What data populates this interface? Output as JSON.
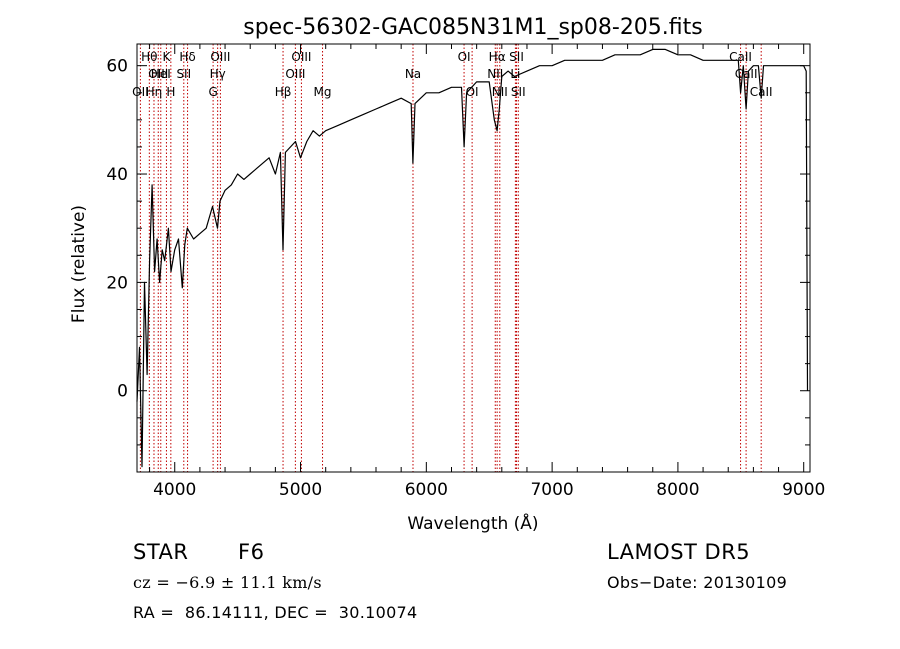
{
  "chart_data": {
    "type": "line",
    "title": "spec-56302-GAC085N31M1_sp08-205.fits",
    "xlabel": "Wavelength (Å)",
    "ylabel": "Flux (relative)",
    "xlim": [
      3700,
      9050
    ],
    "ylim": [
      -15,
      64
    ],
    "x_ticks": [
      4000,
      5000,
      6000,
      7000,
      8000,
      9000
    ],
    "y_ticks": [
      0,
      20,
      40,
      60
    ],
    "grid": false,
    "line_color": "#000000",
    "marker_color": "#c00000",
    "series": [
      {
        "x": [
          3700,
          3720,
          3740,
          3760,
          3780,
          3800,
          3820,
          3840,
          3860,
          3880,
          3900,
          3920,
          3950,
          3970,
          4000,
          4030,
          4060,
          4080,
          4100,
          4150,
          4200,
          4250,
          4300,
          4340,
          4360,
          4400,
          4450,
          4500,
          4550,
          4600,
          4650,
          4700,
          4750,
          4800,
          4840,
          4861,
          4880,
          4920,
          4960,
          5000,
          5050,
          5100,
          5150,
          5200,
          5300,
          5400,
          5500,
          5600,
          5700,
          5800,
          5880,
          5893,
          5910,
          6000,
          6100,
          6200,
          6280,
          6300,
          6320,
          6400,
          6500,
          6540,
          6563,
          6580,
          6600,
          6650,
          6700,
          6800,
          6900,
          7000,
          7100,
          7200,
          7300,
          7400,
          7500,
          7600,
          7700,
          7800,
          7900,
          8000,
          8100,
          8200,
          8300,
          8400,
          8480,
          8498,
          8520,
          8542,
          8560,
          8600,
          8640,
          8662,
          8680,
          8750,
          8850,
          8950,
          9000,
          9020,
          9030
        ],
        "y": [
          -2,
          8,
          -14,
          20,
          3,
          24,
          38,
          22,
          28,
          20,
          26,
          24,
          30,
          22,
          26,
          28,
          19,
          27,
          30,
          28,
          29,
          30,
          34,
          30,
          35,
          37,
          38,
          40,
          39,
          40,
          41,
          42,
          43,
          40,
          44,
          26,
          44,
          45,
          46,
          43,
          46,
          48,
          47,
          48,
          49,
          50,
          51,
          52,
          53,
          54,
          53,
          42,
          53,
          55,
          55,
          56,
          56,
          45,
          55,
          57,
          57,
          50,
          48,
          52,
          58,
          59,
          58,
          59,
          60,
          60,
          61,
          61,
          61,
          61,
          62,
          62,
          62,
          63,
          63,
          62,
          62,
          61,
          61,
          61,
          61,
          55,
          60,
          52,
          59,
          60,
          60,
          54,
          60,
          60,
          60,
          60,
          60,
          59,
          0
        ]
      }
    ],
    "lines": [
      {
        "label": "OII",
        "x": 3727,
        "row": 2,
        "align": "middle"
      },
      {
        "label": "Hθ",
        "x": 3798,
        "row": 0,
        "align": "middle"
      },
      {
        "label": "Hη",
        "x": 3835,
        "row": 2,
        "align": "middle"
      },
      {
        "label": "OIII",
        "x": 3869,
        "row": 1,
        "align": "middle"
      },
      {
        "label": "HeI",
        "x": 3889,
        "row": 1,
        "align": "middle"
      },
      {
        "label": "K",
        "x": 3934,
        "row": 0,
        "align": "middle"
      },
      {
        "label": "H",
        "x": 3969,
        "row": 2,
        "align": "middle"
      },
      {
        "label": "SII",
        "x": 4072,
        "row": 1,
        "align": "middle"
      },
      {
        "label": "Hδ",
        "x": 4102,
        "row": 0,
        "align": "middle"
      },
      {
        "label": "G",
        "x": 4305,
        "row": 2,
        "align": "middle"
      },
      {
        "label": "Hγ",
        "x": 4341,
        "row": 1,
        "align": "middle"
      },
      {
        "label": "OIII",
        "x": 4363,
        "row": 0,
        "align": "middle"
      },
      {
        "label": "Hβ",
        "x": 4861,
        "row": 2,
        "align": "middle"
      },
      {
        "label": "OIII",
        "x": 4959,
        "row": 1,
        "align": "middle"
      },
      {
        "label": "OIII",
        "x": 5007,
        "row": 0,
        "align": "middle"
      },
      {
        "label": "Mg",
        "x": 5175,
        "row": 2,
        "align": "middle"
      },
      {
        "label": "Na",
        "x": 5894,
        "row": 1,
        "align": "middle"
      },
      {
        "label": "OI",
        "x": 6300,
        "row": 0,
        "align": "middle"
      },
      {
        "label": "OI",
        "x": 6364,
        "row": 2,
        "align": "middle"
      },
      {
        "label": "NII",
        "x": 6548,
        "row": 1,
        "align": "middle"
      },
      {
        "label": "Hα",
        "x": 6563,
        "row": 0,
        "align": "middle"
      },
      {
        "label": "NII",
        "x": 6584,
        "row": 2,
        "align": "middle"
      },
      {
        "label": "Li",
        "x": 6708,
        "row": 1,
        "align": "middle"
      },
      {
        "label": "SII",
        "x": 6717,
        "row": 0,
        "align": "middle"
      },
      {
        "label": "SII",
        "x": 6731,
        "row": 2,
        "align": "middle"
      },
      {
        "label": "CaII",
        "x": 8498,
        "row": 0,
        "align": "middle"
      },
      {
        "label": "CaII",
        "x": 8542,
        "row": 1,
        "align": "middle"
      },
      {
        "label": "CaII",
        "x": 8662,
        "row": 2,
        "align": "middle"
      }
    ]
  },
  "info": {
    "class_label": "STAR",
    "subclass_label": "F6",
    "cz_text": "cz = −6.9 ± 11.1 km/s",
    "coords_text": "RA =  86.14111, DEC =  30.10074",
    "survey_label": "LAMOST DR5",
    "obs_date_text": "Obs−Date: 20130109"
  }
}
